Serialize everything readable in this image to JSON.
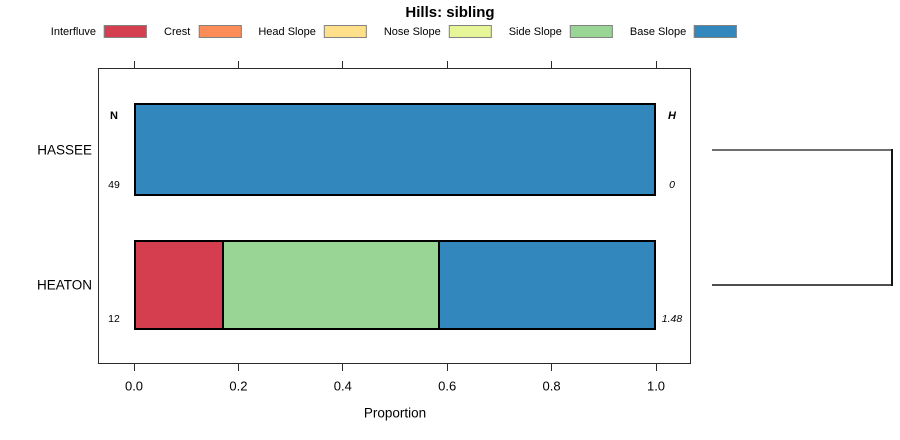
{
  "chart_data": {
    "type": "bar",
    "orientation": "horizontal-stacked",
    "title": "Hills: sibling",
    "xlabel": "Proportion",
    "xlim": [
      0,
      1
    ],
    "xticks": [
      "0.0",
      "0.2",
      "0.4",
      "0.6",
      "0.8",
      "1.0"
    ],
    "grid": false,
    "legend_position": "top",
    "legend": [
      {
        "label": "Interfluve",
        "color": "#d53e4f"
      },
      {
        "label": "Crest",
        "color": "#fc8d59"
      },
      {
        "label": "Head Slope",
        "color": "#fee08b"
      },
      {
        "label": "Nose Slope",
        "color": "#e6f598"
      },
      {
        "label": "Side Slope",
        "color": "#99d594"
      },
      {
        "label": "Base Slope",
        "color": "#3288bd"
      }
    ],
    "column_headers": {
      "left": "N",
      "right": "H"
    },
    "rows": [
      {
        "label": "HASSEE",
        "n": "49",
        "entropy": "0",
        "segments": [
          {
            "category": "Base Slope",
            "proportion": 1.0
          }
        ]
      },
      {
        "label": "HEATON",
        "n": "12",
        "entropy": "1.48",
        "segments": [
          {
            "category": "Interfluve",
            "proportion": 0.1667
          },
          {
            "category": "Side Slope",
            "proportion": 0.4167
          },
          {
            "category": "Base Slope",
            "proportion": 0.4167
          }
        ]
      }
    ],
    "linked_rows": [
      "HASSEE",
      "HEATON"
    ]
  }
}
